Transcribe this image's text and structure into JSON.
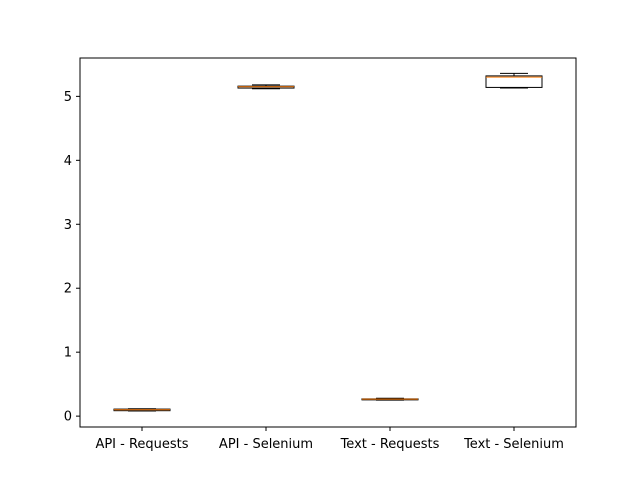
{
  "chart_data": {
    "type": "box",
    "title": "",
    "xlabel": "",
    "ylabel": "",
    "categories": [
      "API - Requests",
      "API - Selenium",
      "Text - Requests",
      "Text - Selenium"
    ],
    "ylim": [
      -0.17,
      5.6
    ],
    "yticks": [
      0,
      1,
      2,
      3,
      4,
      5
    ],
    "yticks_labels": [
      "0",
      "1",
      "2",
      "3",
      "4",
      "5"
    ],
    "grid": false,
    "legend": "none",
    "boxes": [
      {
        "category": "API - Requests",
        "whisker_low": 0.08,
        "q1": 0.085,
        "median": 0.1,
        "q3": 0.11,
        "whisker_high": 0.115
      },
      {
        "category": "API - Selenium",
        "whisker_low": 5.12,
        "q1": 5.13,
        "median": 5.15,
        "q3": 5.16,
        "whisker_high": 5.18
      },
      {
        "category": "Text - Requests",
        "whisker_low": 0.25,
        "q1": 0.255,
        "median": 0.265,
        "q3": 0.27,
        "whisker_high": 0.28
      },
      {
        "category": "Text - Selenium",
        "whisker_low": 5.13,
        "q1": 5.14,
        "median": 5.3,
        "q3": 5.32,
        "whisker_high": 5.36
      }
    ],
    "colors": {
      "box": "#000000",
      "median": "#ff7f0e",
      "axes": "#000000"
    }
  }
}
